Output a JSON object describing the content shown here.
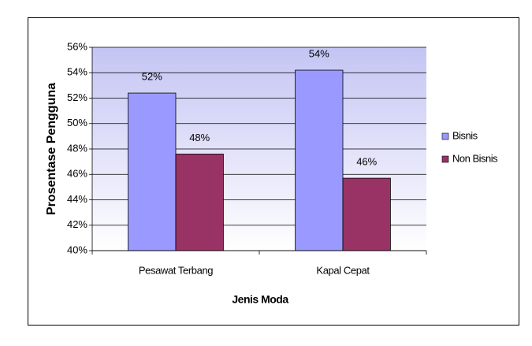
{
  "chart_data": {
    "type": "bar",
    "categories": [
      "Pesawat Terbang",
      "Kapal Cepat"
    ],
    "series": [
      {
        "name": "Bisnis",
        "color": "#9999ff",
        "values": [
          52.4,
          54.2
        ],
        "value_labels": [
          "52%",
          "54%"
        ]
      },
      {
        "name": "Non Bisnis",
        "color": "#993366",
        "values": [
          47.6,
          45.7
        ],
        "value_labels": [
          "48%",
          "46%"
        ]
      }
    ],
    "x_label": "Jenis Moda",
    "y_label": "Prosentase Pengguna",
    "ylim": [
      40,
      56
    ],
    "yticks": [
      {
        "value": 40,
        "label": "40%"
      },
      {
        "value": 42,
        "label": "42%"
      },
      {
        "value": 44,
        "label": "44%"
      },
      {
        "value": 46,
        "label": "46%"
      },
      {
        "value": 48,
        "label": "48%"
      },
      {
        "value": 50,
        "label": "50%"
      },
      {
        "value": 52,
        "label": "52%"
      },
      {
        "value": 54,
        "label": "54%"
      },
      {
        "value": 56,
        "label": "56%"
      }
    ],
    "grid": true,
    "legend": "right"
  }
}
